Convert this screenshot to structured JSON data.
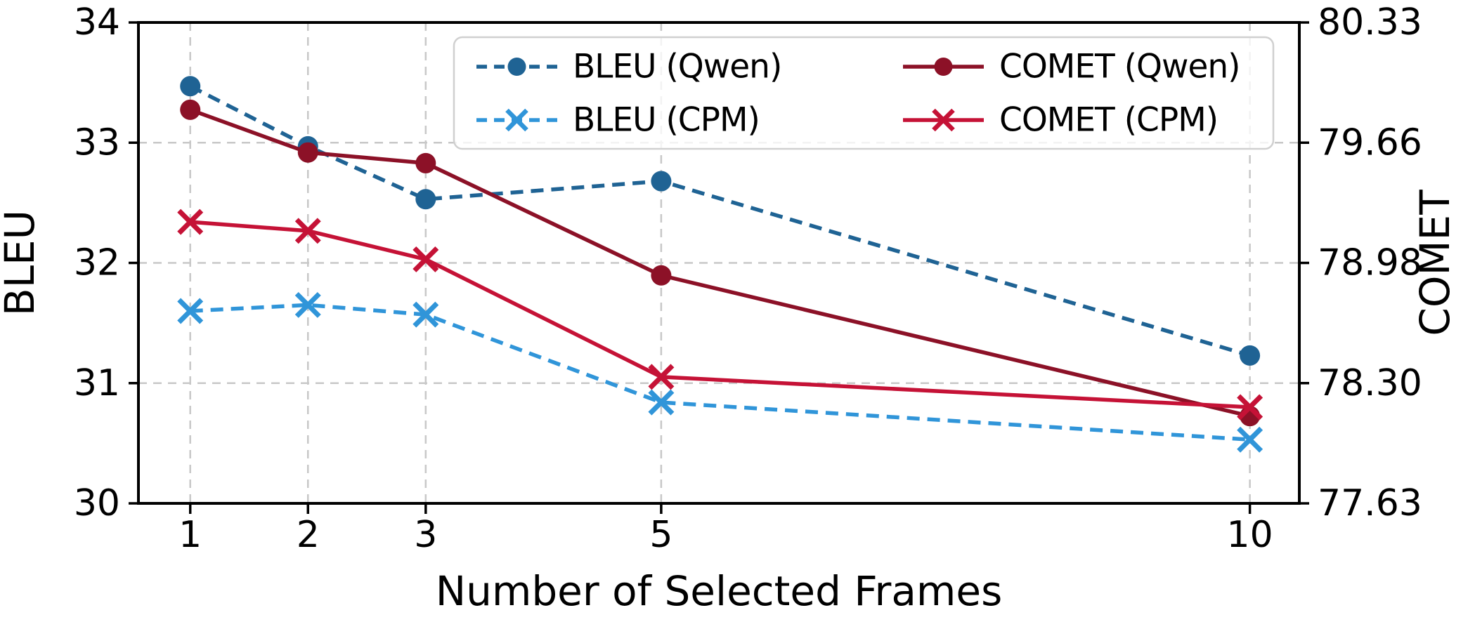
{
  "figure": {
    "background": "#ffffff",
    "grid_color": "#c8c8c8",
    "spine_color": "#000000",
    "legend_border_color": "#d0d0d0",
    "legend_background": "#ffffff"
  },
  "chart_data": {
    "type": "line",
    "title": "",
    "xlabel": "Number of Selected Frames",
    "ylabel_left": "BLEU",
    "ylabel_right": "COMET",
    "x": [
      1,
      2,
      3,
      5,
      10
    ],
    "x_tick_labels": [
      "1",
      "2",
      "3",
      "5",
      "10"
    ],
    "xlim": [
      0.56,
      10.42
    ],
    "ylim_left": [
      30,
      34
    ],
    "ylim_right": [
      77.63,
      80.33
    ],
    "left_ticks": [
      30,
      31,
      32,
      33,
      34
    ],
    "left_tick_labels": [
      "30",
      "31",
      "32",
      "33",
      "34"
    ],
    "right_tick_labels": [
      "77.63",
      "78.30",
      "78.98",
      "79.66",
      "80.33"
    ],
    "grid": true,
    "legend_position": "upper center",
    "legend_columns": 2,
    "legend_order": [
      "BLEU (Qwen)",
      "BLEU (CPM)",
      "COMET (Qwen)",
      "COMET (CPM)"
    ],
    "series": [
      {
        "name": "BLEU (Qwen)",
        "metric": "BLEU",
        "model": "Qwen",
        "axis": "left",
        "color": "#1f6394",
        "line_style": "dashed",
        "marker": "circle",
        "values": [
          33.47,
          32.97,
          32.53,
          32.68,
          31.23
        ]
      },
      {
        "name": "BLEU (CPM)",
        "metric": "BLEU",
        "model": "CPM",
        "axis": "left",
        "color": "#3095d9",
        "line_style": "dashed",
        "marker": "x",
        "values": [
          31.6,
          31.65,
          31.57,
          30.84,
          30.53
        ]
      },
      {
        "name": "COMET (Qwen)",
        "metric": "COMET",
        "model": "Qwen",
        "axis": "right",
        "color": "#8c1127",
        "line_style": "solid",
        "marker": "circle",
        "values": [
          79.84,
          79.6,
          79.54,
          78.91,
          78.12
        ]
      },
      {
        "name": "COMET (CPM)",
        "metric": "COMET",
        "model": "CPM",
        "axis": "right",
        "color": "#c51236",
        "line_style": "solid",
        "marker": "x",
        "values": [
          79.21,
          79.16,
          79.0,
          78.34,
          78.17
        ]
      }
    ]
  }
}
